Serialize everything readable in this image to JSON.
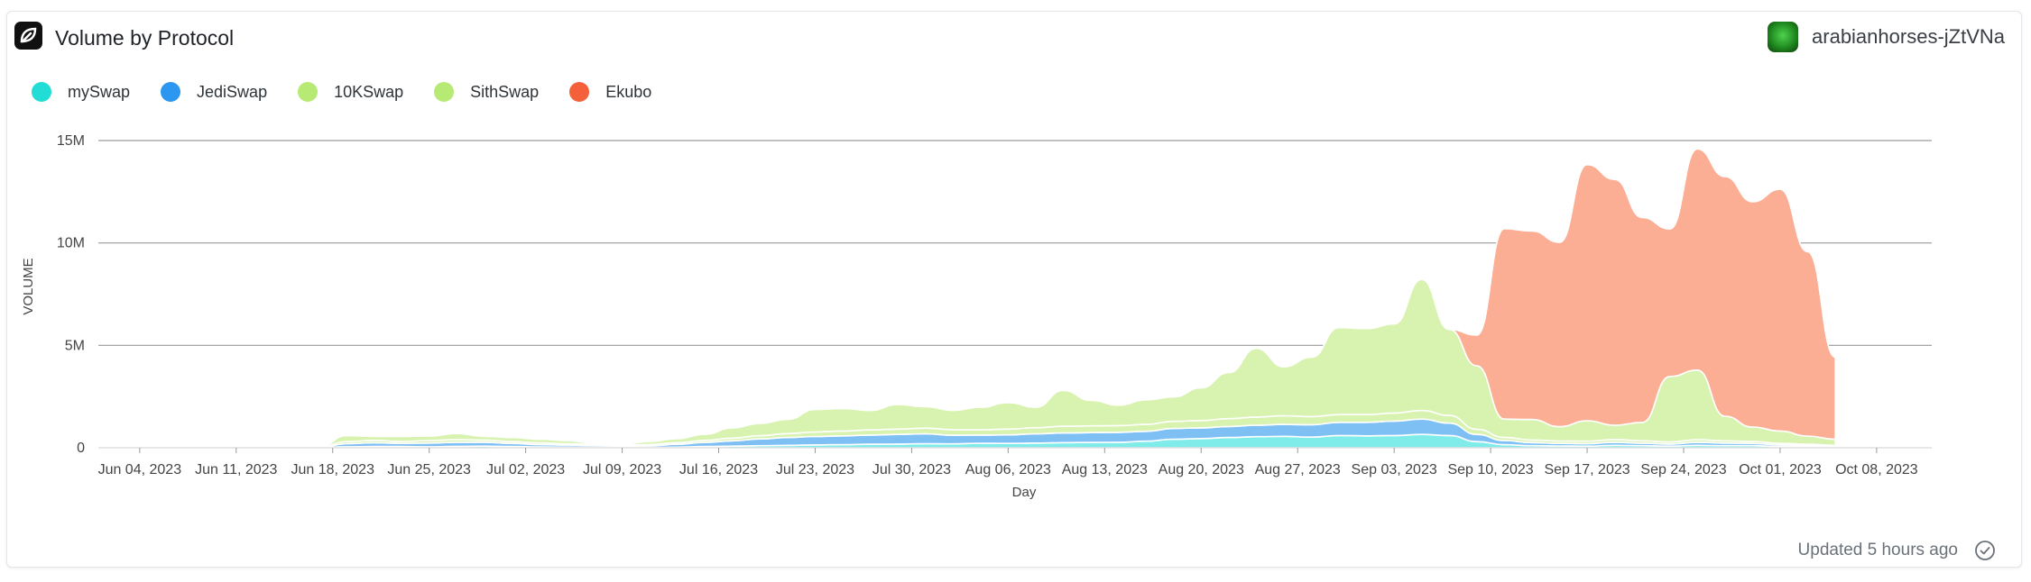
{
  "header": {
    "title": "Volume by Protocol",
    "user_name": "arabianhorses-jZtVNa"
  },
  "footer": {
    "updated_text": "Updated 5 hours ago"
  },
  "legend": [
    {
      "label": "mySwap",
      "color": "#22dcd6"
    },
    {
      "label": "JediSwap",
      "color": "#2c97f0"
    },
    {
      "label": "10KSwap",
      "color": "#b7ea74"
    },
    {
      "label": "SithSwap",
      "color": "#b7ea74"
    },
    {
      "label": "Ekubo",
      "color": "#f4603a"
    }
  ],
  "chart_data": {
    "type": "area",
    "stacked": true,
    "xlabel": "Day",
    "ylabel": "VOLUME",
    "ylim": [
      0,
      15000000
    ],
    "yticks": [
      0,
      5000000,
      10000000,
      15000000
    ],
    "ytick_labels": [
      "0",
      "5M",
      "10M",
      "15M"
    ],
    "xticks": [
      "Jun 04, 2023",
      "Jun 11, 2023",
      "Jun 18, 2023",
      "Jun 25, 2023",
      "Jul 02, 2023",
      "Jul 09, 2023",
      "Jul 16, 2023",
      "Jul 23, 2023",
      "Jul 30, 2023",
      "Aug 06, 2023",
      "Aug 13, 2023",
      "Aug 20, 2023",
      "Aug 27, 2023",
      "Sep 03, 2023",
      "Sep 10, 2023",
      "Sep 17, 2023",
      "Sep 24, 2023",
      "Oct 01, 2023",
      "Oct 08, 2023"
    ],
    "x_start": "2023-06-01",
    "x_step_days": 2,
    "grid": true,
    "legend_position": "top-left",
    "series": [
      {
        "name": "mySwap",
        "color": "#7fecea",
        "values": [
          0,
          0,
          0,
          0,
          0,
          0,
          0,
          0,
          0,
          50000,
          60000,
          60000,
          50000,
          70000,
          80000,
          60000,
          40000,
          30000,
          20000,
          10000,
          10000,
          30000,
          60000,
          80000,
          100000,
          120000,
          140000,
          150000,
          170000,
          180000,
          200000,
          190000,
          220000,
          210000,
          230000,
          250000,
          260000,
          270000,
          320000,
          420000,
          450000,
          500000,
          540000,
          560000,
          520000,
          600000,
          580000,
          600000,
          650000,
          600000,
          300000,
          150000,
          100000,
          90000,
          80000,
          120000,
          100000,
          80000,
          120000,
          100000,
          100000,
          60000,
          50000,
          40000
        ]
      },
      {
        "name": "JediSwap",
        "color": "#7fc0f4",
        "values": [
          0,
          0,
          0,
          0,
          0,
          0,
          0,
          0,
          0,
          150000,
          180000,
          150000,
          180000,
          200000,
          190000,
          150000,
          120000,
          100000,
          80000,
          70000,
          80000,
          140000,
          200000,
          260000,
          330000,
          380000,
          410000,
          430000,
          450000,
          470000,
          480000,
          420000,
          400000,
          420000,
          450000,
          470000,
          480000,
          480000,
          480000,
          520000,
          520000,
          540000,
          560000,
          580000,
          600000,
          640000,
          660000,
          700000,
          750000,
          600000,
          350000,
          200000,
          150000,
          120000,
          120000,
          150000,
          120000,
          100000,
          150000,
          130000,
          110000,
          80000,
          60000,
          40000
        ]
      },
      {
        "name": "10KSwap",
        "color": "#d8f3b0",
        "values": [
          0,
          0,
          0,
          0,
          0,
          0,
          0,
          0,
          0,
          100000,
          120000,
          100000,
          120000,
          130000,
          110000,
          90000,
          80000,
          70000,
          60000,
          60000,
          70000,
          80000,
          100000,
          130000,
          160000,
          190000,
          220000,
          240000,
          250000,
          260000,
          280000,
          270000,
          260000,
          280000,
          300000,
          330000,
          330000,
          330000,
          340000,
          350000,
          360000,
          380000,
          400000,
          420000,
          400000,
          380000,
          380000,
          400000,
          420000,
          380000,
          250000,
          150000,
          130000,
          120000,
          120000,
          130000,
          120000,
          100000,
          120000,
          110000,
          100000,
          80000,
          60000,
          40000
        ]
      },
      {
        "name": "SithSwap",
        "color": "#d8f3b0",
        "values": [
          0,
          0,
          0,
          0,
          0,
          0,
          0,
          0,
          0,
          300000,
          200000,
          250000,
          220000,
          300000,
          180000,
          200000,
          180000,
          150000,
          50000,
          50000,
          150000,
          200000,
          300000,
          500000,
          600000,
          700000,
          1100000,
          1100000,
          950000,
          1200000,
          1050000,
          950000,
          1100000,
          1300000,
          1000000,
          1750000,
          1250000,
          1000000,
          1200000,
          1200000,
          1600000,
          2250000,
          3350000,
          2400000,
          2900000,
          4250000,
          4200000,
          4350000,
          6400000,
          4200000,
          3100000,
          900000,
          1000000,
          700000,
          1000000,
          700000,
          900000,
          3200000,
          3400000,
          1200000,
          700000,
          600000,
          400000,
          300000
        ]
      },
      {
        "name": "Ekubo",
        "color": "#fbae94",
        "values": [
          0,
          0,
          0,
          0,
          0,
          0,
          0,
          0,
          0,
          0,
          0,
          0,
          0,
          0,
          0,
          0,
          0,
          0,
          0,
          0,
          0,
          0,
          0,
          0,
          0,
          0,
          0,
          0,
          0,
          0,
          0,
          0,
          0,
          0,
          0,
          0,
          0,
          0,
          0,
          0,
          0,
          0,
          0,
          0,
          0,
          0,
          0,
          0,
          0,
          0,
          1500000,
          9300000,
          9200000,
          9000000,
          12500000,
          12000000,
          10000000,
          7200000,
          10800000,
          11700000,
          11000000,
          11800000,
          9000000,
          4000000
        ]
      }
    ]
  }
}
